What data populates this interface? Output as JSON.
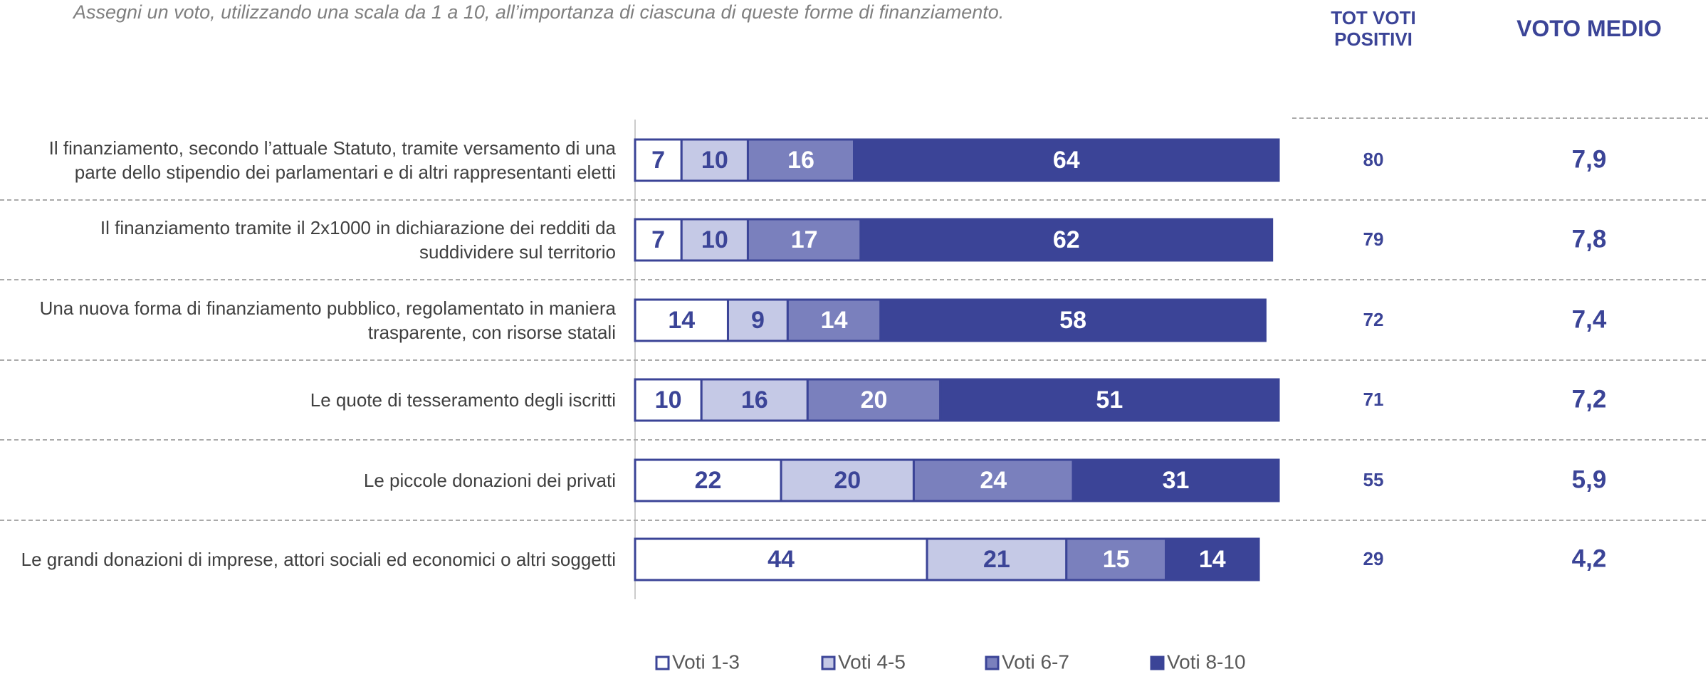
{
  "chart_data": {
    "type": "stacked_bar_horizontal",
    "title": "Assegni un voto, utilizzando una scala da 1 a 10, all’importanza di ciascuna di queste forme di finanziamento.",
    "categories": [
      "Il finanziamento, secondo l’attuale Statuto, tramite versamento di una parte dello stipendio dei parlamentari e di altri rappresentanti eletti",
      "Il finanziamento tramite il 2x1000 in dichiarazione dei redditi da suddividere sul territorio",
      "Una nuova forma di finanziamento pubblico, regolamentato in maniera trasparente, con risorse statali",
      "Le quote di tesseramento degli iscritti",
      "Le piccole donazioni dei privati",
      "Le grandi donazioni di imprese, attori sociali ed economici o altri soggetti"
    ],
    "series": [
      {
        "name": "Voti 1-3",
        "color": "#ffffff",
        "text_color": "#3b4497",
        "values": [
          7,
          7,
          14,
          10,
          22,
          44
        ]
      },
      {
        "name": "Voti 4-5",
        "color": "#c5c9e6",
        "text_color": "#3b4497",
        "values": [
          10,
          10,
          9,
          16,
          20,
          21
        ]
      },
      {
        "name": "Voti 6-7",
        "color": "#7a80bd",
        "text_color": "#ffffff",
        "values": [
          16,
          17,
          14,
          20,
          24,
          15
        ]
      },
      {
        "name": "Voti 8-10",
        "color": "#3b4497",
        "text_color": "#ffffff",
        "values": [
          64,
          62,
          58,
          51,
          31,
          14
        ]
      }
    ],
    "xlim": [
      0,
      97
    ],
    "columns": [
      {
        "title": "TOT VOTI POSITIVI",
        "values": [
          80,
          79,
          72,
          71,
          55,
          29
        ]
      },
      {
        "title": "VOTO MEDIO",
        "values": [
          7.9,
          7.8,
          7.4,
          7.2,
          5.9,
          4.2
        ],
        "value_labels": [
          "7,9",
          "7,8",
          "7,4",
          "7,2",
          "5,9",
          "4,2"
        ]
      }
    ],
    "legend": "bottom"
  }
}
